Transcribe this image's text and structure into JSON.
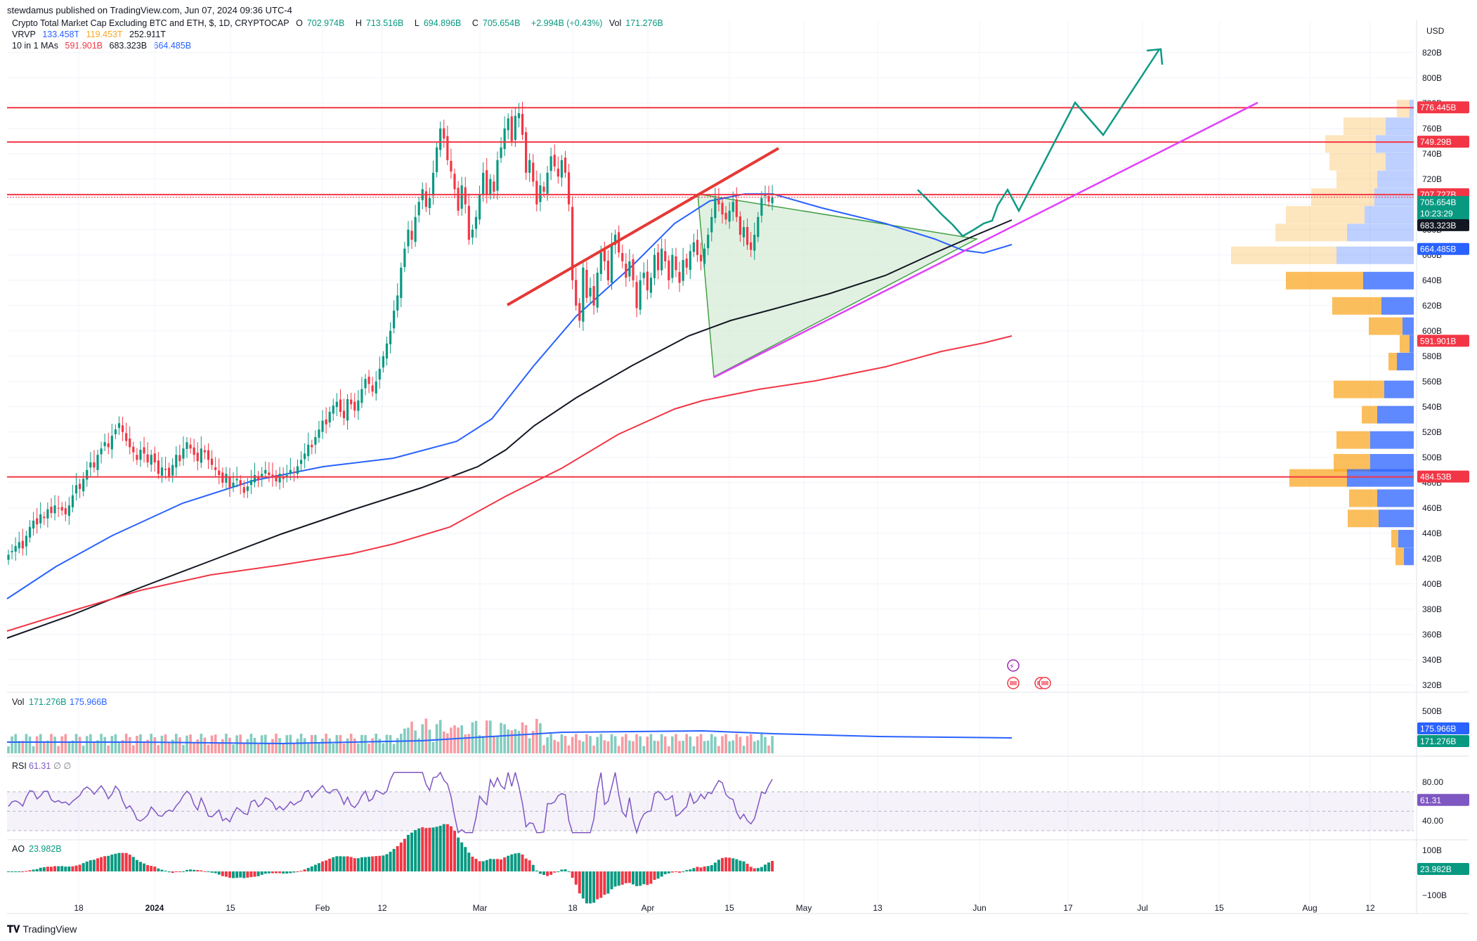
{
  "header": {
    "published": "stewdamus published on TradingView.com, Jun 07, 2024 09:36 UTC-4",
    "symbol": "Crypto Total Market Cap Excluding BTC and ETH, $, 1D, CRYPTOCAP",
    "ohlc": {
      "o_label": "O",
      "o": "702.974B",
      "h_label": "H",
      "h": "713.516B",
      "l_label": "L",
      "l": "694.896B",
      "c_label": "C",
      "c": "705.654B",
      "chg": "+2.994B (+0.43%)",
      "vol_label": "Vol",
      "vol": "171.276B"
    },
    "vrvp": {
      "label": "VRVP",
      "v1": "133.458T",
      "v2": "119.453T",
      "v3": "252.911T"
    },
    "ma": {
      "label": "10 in 1 MAs",
      "v1": "591.901B",
      "v2": "683.323B",
      "v3": "664.485B"
    }
  },
  "volume_pane": {
    "label": "Vol",
    "v1": "171.276B",
    "v2": "175.966B"
  },
  "rsi_pane": {
    "label": "RSI",
    "value": "61.31",
    "icons": "∅ ∅"
  },
  "ao_pane": {
    "label": "AO",
    "value": "23.982B"
  },
  "currency": "USD",
  "footer": {
    "brand": "TradingView"
  },
  "colors": {
    "up": "#089981",
    "down": "#f23645",
    "ma_blue": "#2962ff",
    "ma_black": "#131722",
    "ma_red": "#f23645",
    "trend_magenta": "#e040fb",
    "projection": "#0e9a85",
    "triangle_fill": "#c8e6c9",
    "rsi": "#7e57c2"
  },
  "chart_data": {
    "type": "candlestick",
    "title": "Crypto Total Market Cap Excluding BTC and ETH, $, 1D, CRYPTOCAP",
    "y_unit": "B",
    "ylim": [
      306,
      836
    ],
    "price_ticks": [
      320,
      340,
      360,
      380,
      400,
      420,
      440,
      460,
      480,
      500,
      520,
      540,
      560,
      580,
      600,
      620,
      640,
      660,
      680,
      700,
      720,
      740,
      760,
      780,
      800,
      820
    ],
    "x_labels": [
      "18",
      "2024",
      "15",
      "Feb",
      "12",
      "Mar",
      "18",
      "Apr",
      "15",
      "May",
      "13",
      "Jun",
      "17",
      "Jul",
      "15",
      "Aug",
      "12"
    ],
    "horizontal_levels": [
      {
        "value": 776.445,
        "label": "776.445B"
      },
      {
        "value": 749.29,
        "label": "749.29B"
      },
      {
        "value": 707.727,
        "label": "707.727B"
      },
      {
        "value": 484.53,
        "label": "484.53B"
      }
    ],
    "last_price": {
      "value": 705.654,
      "label": "705.654B",
      "countdown": "10:23:29"
    },
    "ma_values": [
      {
        "value": 683.323,
        "label": "683.323B"
      },
      {
        "value": 664.485,
        "label": "664.485B"
      },
      {
        "value": 591.901,
        "label": "591.901B"
      }
    ],
    "candles_close": [
      423,
      426,
      430,
      433,
      428,
      438,
      445,
      450,
      447,
      455,
      452,
      459,
      456,
      462,
      460,
      458,
      455,
      462,
      470,
      478,
      475,
      483,
      490,
      496,
      492,
      502,
      507,
      512,
      508,
      517,
      522,
      527,
      520,
      513,
      508,
      504,
      498,
      506,
      503,
      496,
      502,
      496,
      487,
      492,
      490,
      485,
      494,
      502,
      497,
      507,
      512,
      507,
      502,
      497,
      507,
      504,
      498,
      494,
      490,
      486,
      480,
      487,
      476,
      480,
      483,
      478,
      472,
      477,
      482,
      486,
      482,
      487,
      490,
      486,
      484,
      481,
      487,
      483,
      486,
      490,
      488,
      493,
      498,
      503,
      510,
      508,
      516,
      522,
      529,
      526,
      536,
      541,
      544,
      536,
      531,
      546,
      542,
      537,
      545,
      554,
      562,
      558,
      552,
      560,
      570,
      580,
      590,
      600,
      616,
      628,
      650,
      665,
      680,
      672,
      690,
      702,
      712,
      698,
      705,
      725,
      745,
      760,
      752,
      735,
      726,
      712,
      695,
      715,
      700,
      672,
      680,
      690,
      708,
      725,
      708,
      720,
      710,
      735,
      745,
      760,
      768,
      750,
      770,
      772,
      755,
      725,
      735,
      718,
      700,
      715,
      710,
      725,
      738,
      730,
      722,
      735,
      725,
      700,
      640,
      620,
      608,
      650,
      626,
      634,
      620,
      646,
      662,
      655,
      640,
      668,
      676,
      662,
      655,
      642,
      655,
      640,
      618,
      640,
      646,
      632,
      642,
      660,
      648,
      665,
      655,
      640,
      660,
      648,
      638,
      656,
      650,
      663,
      670,
      660,
      655,
      665,
      676,
      690,
      705,
      700,
      692,
      688,
      695,
      702,
      690,
      676,
      682,
      668,
      664,
      676,
      690,
      705,
      708,
      702,
      705.654
    ],
    "rsi": {
      "value": 61.31,
      "levels": [
        70,
        50,
        30
      ],
      "ticks": [
        80,
        40
      ]
    },
    "volume_ticks": [
      "500B"
    ],
    "ao_ticks": [
      "100B",
      "0",
      "−100B"
    ],
    "annotation": "projected path: pullback to ~690B then breakout above 776.445B toward ~815B"
  }
}
